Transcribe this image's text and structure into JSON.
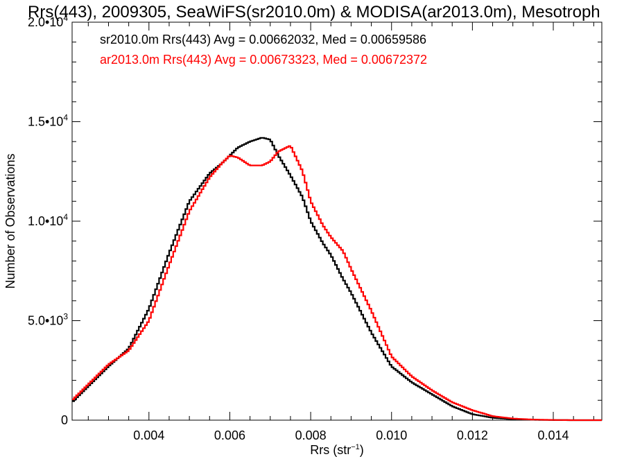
{
  "chart_data": {
    "type": "line",
    "title": "Rrs(443), 2009305, SeaWiFS(sr2010.0m) & MODISA(ar2013.0m), Mesotroph",
    "xlabel_base": "Rrs (str",
    "xlabel_sup": "−1",
    "xlabel_end": ")",
    "ylabel": "Number of Observations",
    "xlim": [
      0.0021,
      0.0152
    ],
    "ylim": [
      0,
      20000
    ],
    "x_ticks": [
      0.004,
      0.006,
      0.008,
      0.01,
      0.012,
      0.014
    ],
    "x_tick_labels": [
      "0.004",
      "0.006",
      "0.008",
      "0.010",
      "0.012",
      "0.014"
    ],
    "y_ticks": [
      0,
      5000,
      10000,
      15000,
      20000
    ],
    "y_tick_labels": [
      {
        "mantissa": "0",
        "exp": ""
      },
      {
        "mantissa": "5.0•10",
        "exp": "3"
      },
      {
        "mantissa": "1.0•10",
        "exp": "4"
      },
      {
        "mantissa": "1.5•10",
        "exp": "4"
      },
      {
        "mantissa": "2.0•10",
        "exp": "4"
      }
    ],
    "legend_placement": "top-left",
    "series": [
      {
        "name": "sr2010.0m",
        "legend_text": "sr2010.0m Rrs(443) Avg = 0.00662032, Med = 0.00659586",
        "color": "#000000",
        "x": [
          0.0021,
          0.0025,
          0.003,
          0.0035,
          0.004,
          0.0045,
          0.005,
          0.0055,
          0.0058,
          0.006,
          0.0062,
          0.0065,
          0.0068,
          0.007,
          0.0072,
          0.0075,
          0.0078,
          0.008,
          0.0083,
          0.0085,
          0.0088,
          0.009,
          0.0095,
          0.01,
          0.0105,
          0.011,
          0.0115,
          0.012,
          0.0125,
          0.013,
          0.0135,
          0.014,
          0.0145,
          0.015,
          0.0152
        ],
        "y": [
          900,
          1700,
          2700,
          3600,
          5600,
          8400,
          11000,
          12400,
          12900,
          13300,
          13700,
          14000,
          14200,
          14100,
          13300,
          12300,
          11200,
          10000,
          8900,
          8300,
          7100,
          6400,
          4400,
          2700,
          1900,
          1300,
          700,
          300,
          120,
          50,
          20,
          5,
          0,
          0,
          0
        ]
      },
      {
        "name": "ar2013.0m",
        "legend_text": "ar2013.0m Rrs(443) Avg = 0.00673323, Med = 0.00672372",
        "color": "#ff0000",
        "x": [
          0.0021,
          0.0025,
          0.003,
          0.0035,
          0.004,
          0.0045,
          0.005,
          0.0055,
          0.0058,
          0.006,
          0.0062,
          0.0065,
          0.0068,
          0.007,
          0.0072,
          0.0075,
          0.0078,
          0.008,
          0.0083,
          0.0085,
          0.0088,
          0.009,
          0.0095,
          0.01,
          0.0105,
          0.011,
          0.0115,
          0.012,
          0.0125,
          0.013,
          0.0135,
          0.014,
          0.0145,
          0.015,
          0.0152
        ],
        "y": [
          1000,
          1800,
          2800,
          3500,
          5000,
          7800,
          10500,
          12200,
          12900,
          13300,
          13200,
          12800,
          12800,
          13000,
          13500,
          13800,
          12500,
          11000,
          9800,
          9200,
          8500,
          7600,
          5500,
          3200,
          2200,
          1500,
          900,
          500,
          200,
          80,
          30,
          10,
          0,
          0,
          0
        ]
      }
    ]
  }
}
